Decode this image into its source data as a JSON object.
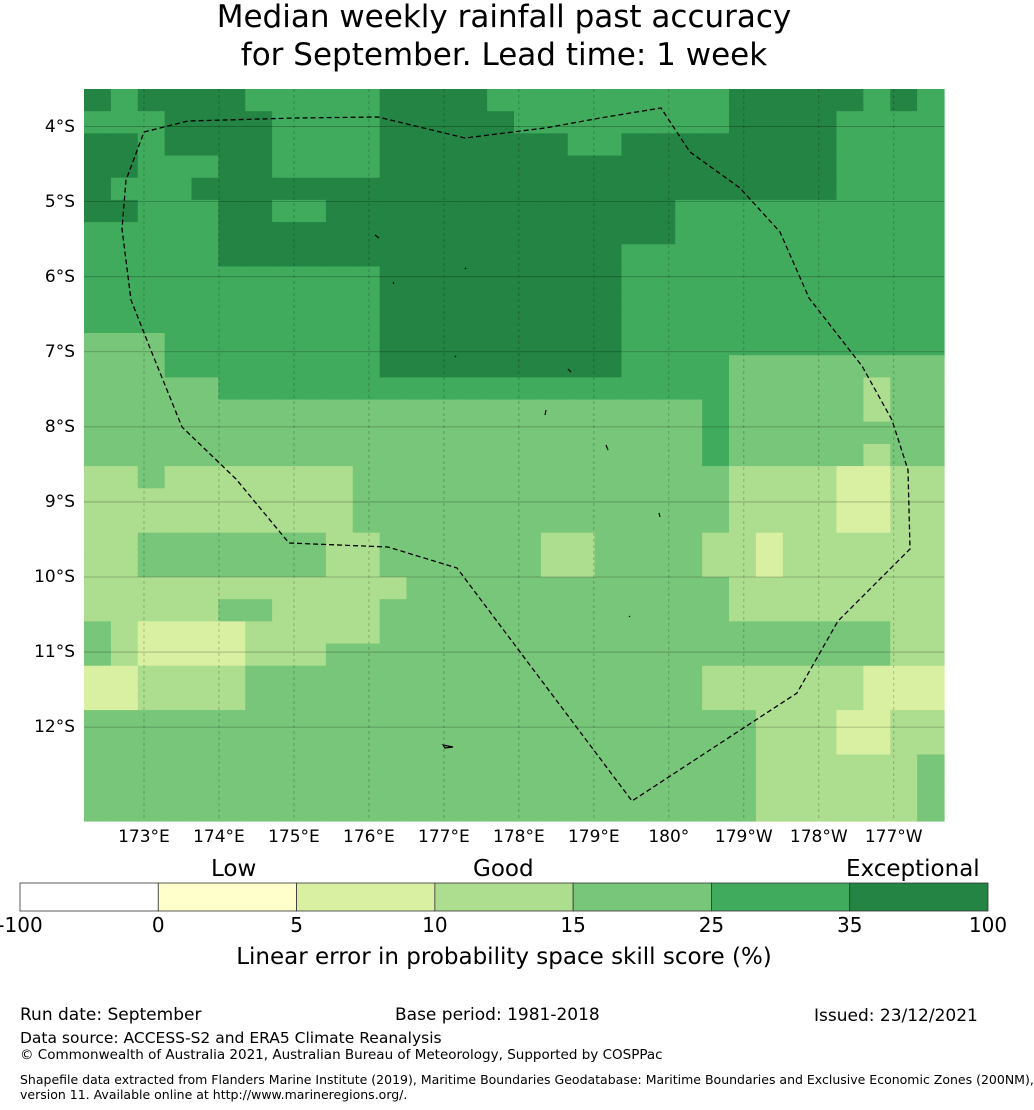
{
  "title_line1": "Median weekly rainfall past accuracy",
  "title_line2": "for September. Lead time: 1 week",
  "map": {
    "lat_labels": [
      "4°S",
      "5°S",
      "6°S",
      "7°S",
      "8°S",
      "9°S",
      "10°S",
      "11°S",
      "12°S"
    ],
    "lon_labels": [
      "173°E",
      "174°E",
      "175°E",
      "176°E",
      "177°E",
      "178°E",
      "179°E",
      "180°",
      "179°W",
      "178°W",
      "177°W"
    ],
    "extent": {
      "lon_min": 172.2,
      "lon_max": 183.67,
      "lat_min": -13.25,
      "lat_max": -3.5
    },
    "grid_lon_step": 0.833,
    "grid_lat_step": 0.555,
    "skill_grid": [
      "65666655555666655555555566666565",
      "55566665555666665555555566665555",
      "66566665555666666655666666665555",
      "66555665555666666666666666665555",
      "65556666666666666666666666665555",
      "66555665566666666666665555555555",
      "55555666666666666666665555555555",
      "55555666666666666666555555555555",
      "55555555555666666666555555555555",
      "55555555555666666666555555555555",
      "55555555555666666666555555555555",
      "44455555555666666666555555555555",
      "44455555555666666666555544444444",
      "44444555555555555555555544444344",
      "44444444444444444444444544444344",
      "44444444444444444444444544444444",
      "44444444444444444444444544444344",
      "33433333334444444444444433332233",
      "33333333334444444444444433332233",
      "33333333334444444444444433332233",
      "33444444433444444334444332333333",
      "33444444433444444334444332333333",
      "33333333333344444444444433333333",
      "33333443333444444444444433333333",
      "43222233333444444444444444444433",
      "43222233344444444444444444444433",
      "22333344444444444444444333333222",
      "22333344444444444444444333333222",
      "44444444444444444444444443332233",
      "44444444444444444444444443332233",
      "44444444444444444444444443333334",
      "44444444444444444444444443333334",
      "44444444444444444444444443333334"
    ],
    "colors": {
      "class_lt0": "#ffffff",
      "class_0_5": "#ffffcc",
      "class_5_10": "#d9f0a3",
      "class_10_15": "#addd8e",
      "class_15_25": "#78c679",
      "class_25_35": "#41ab5d",
      "class_35_100": "#238443"
    }
  },
  "legend": {
    "category_labels": [
      "Low",
      "Good",
      "Exceptional"
    ],
    "ticks": [
      "-100",
      "0",
      "5",
      "10",
      "15",
      "25",
      "35",
      "100"
    ],
    "title": "Linear error in probability space skill score (%)"
  },
  "footer": {
    "run_date": "Run date: September",
    "base_period": "Base period: 1981-2018",
    "issued": "Issued: 23/12/2021",
    "data_source": "Data source: ACCESS-S2 and ERA5 Climate Reanalysis",
    "copyright": "© Commonwealth of Australia 2021, Australian Bureau of Meteorology, Supported by COSPPac",
    "shapefile_line1": "Shapefile data extracted from Flanders Marine Institute (2019), Maritime Boundaries Geodatabase: Maritime Boundaries and Exclusive Economic Zones (200NM),",
    "shapefile_line2": "version 11. Available online at http://www.marineregions.org/."
  }
}
